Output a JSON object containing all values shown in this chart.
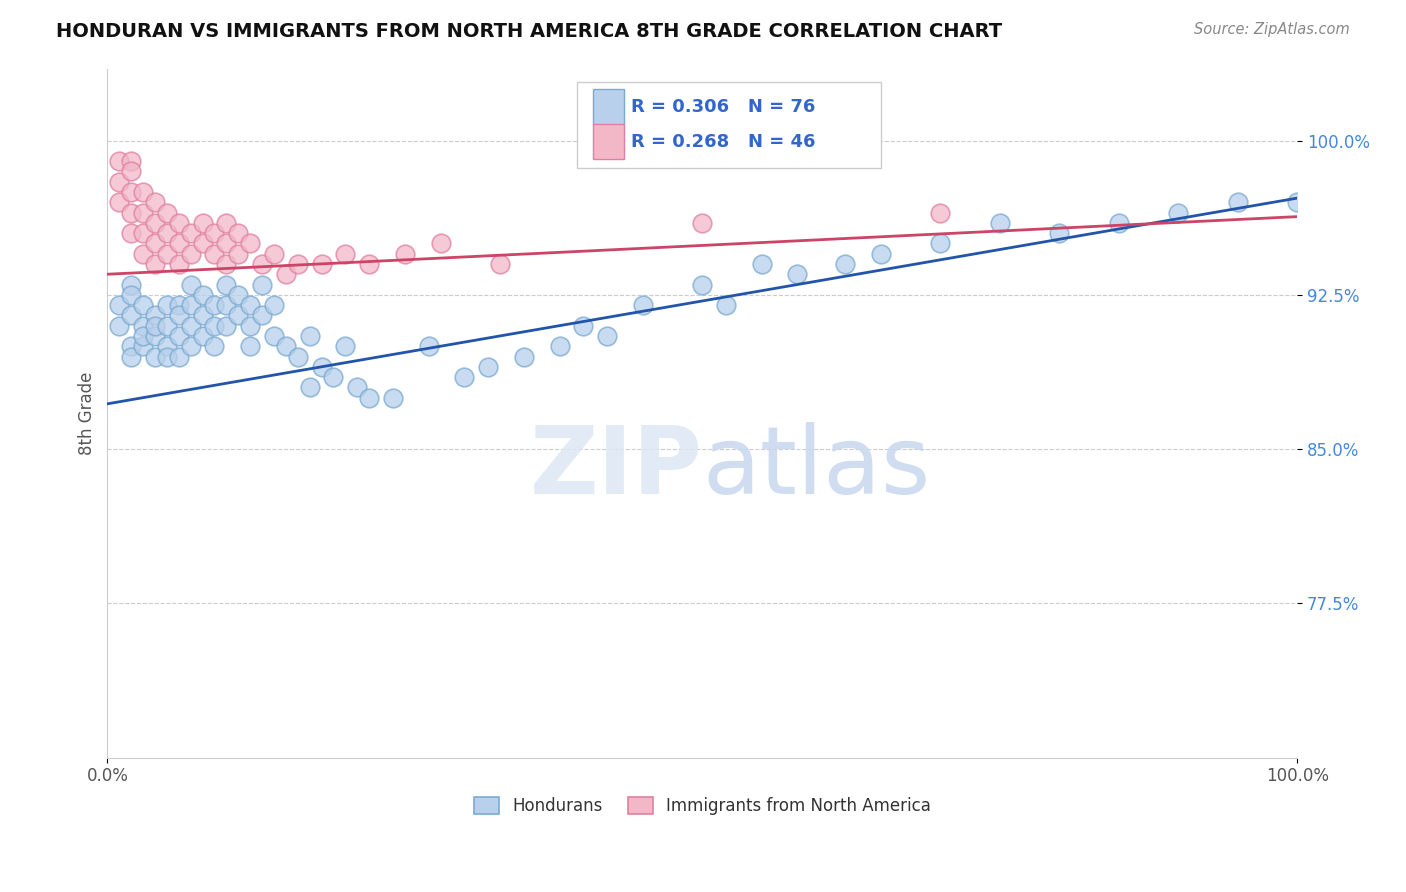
{
  "title": "HONDURAN VS IMMIGRANTS FROM NORTH AMERICA 8TH GRADE CORRELATION CHART",
  "source": "Source: ZipAtlas.com",
  "ylabel": "8th Grade",
  "xlim": [
    0.0,
    1.0
  ],
  "ylim": [
    0.7,
    1.035
  ],
  "ytick_vals": [
    0.775,
    0.85,
    0.925,
    1.0
  ],
  "ytick_labels": [
    "77.5%",
    "85.0%",
    "92.5%",
    "100.0%"
  ],
  "xtick_vals": [
    0.0,
    1.0
  ],
  "xtick_labels": [
    "0.0%",
    "100.0%"
  ],
  "blue_fill": "#b8d0eb",
  "blue_edge": "#7aaad0",
  "pink_fill": "#f2b8c8",
  "pink_edge": "#e080a0",
  "trend_blue": "#2255aa",
  "trend_pink": "#cc4466",
  "R_blue": 0.306,
  "N_blue": 76,
  "R_pink": 0.268,
  "N_pink": 46,
  "legend_labels": [
    "Hondurans",
    "Immigrants from North America"
  ],
  "blue_trend_x0": 0.0,
  "blue_trend_y0": 0.872,
  "blue_trend_x1": 1.0,
  "blue_trend_y1": 0.972,
  "pink_trend_x0": 0.0,
  "pink_trend_y0": 0.935,
  "pink_trend_x1": 1.0,
  "pink_trend_y1": 0.963,
  "blue_x": [
    0.01,
    0.01,
    0.02,
    0.02,
    0.02,
    0.02,
    0.02,
    0.03,
    0.03,
    0.03,
    0.03,
    0.04,
    0.04,
    0.04,
    0.04,
    0.05,
    0.05,
    0.05,
    0.05,
    0.06,
    0.06,
    0.06,
    0.06,
    0.07,
    0.07,
    0.07,
    0.07,
    0.08,
    0.08,
    0.08,
    0.09,
    0.09,
    0.09,
    0.1,
    0.1,
    0.1,
    0.11,
    0.11,
    0.12,
    0.12,
    0.12,
    0.13,
    0.13,
    0.14,
    0.14,
    0.15,
    0.16,
    0.17,
    0.17,
    0.18,
    0.19,
    0.2,
    0.21,
    0.22,
    0.24,
    0.27,
    0.3,
    0.32,
    0.35,
    0.38,
    0.4,
    0.42,
    0.45,
    0.5,
    0.52,
    0.55,
    0.58,
    0.62,
    0.65,
    0.7,
    0.75,
    0.8,
    0.85,
    0.9,
    0.95,
    1.0
  ],
  "blue_y": [
    0.92,
    0.91,
    0.93,
    0.915,
    0.925,
    0.9,
    0.895,
    0.92,
    0.91,
    0.9,
    0.905,
    0.915,
    0.905,
    0.895,
    0.91,
    0.92,
    0.91,
    0.9,
    0.895,
    0.92,
    0.915,
    0.905,
    0.895,
    0.93,
    0.92,
    0.91,
    0.9,
    0.925,
    0.915,
    0.905,
    0.92,
    0.91,
    0.9,
    0.93,
    0.92,
    0.91,
    0.925,
    0.915,
    0.92,
    0.91,
    0.9,
    0.93,
    0.915,
    0.92,
    0.905,
    0.9,
    0.895,
    0.905,
    0.88,
    0.89,
    0.885,
    0.9,
    0.88,
    0.875,
    0.875,
    0.9,
    0.885,
    0.89,
    0.895,
    0.9,
    0.91,
    0.905,
    0.92,
    0.93,
    0.92,
    0.94,
    0.935,
    0.94,
    0.945,
    0.95,
    0.96,
    0.955,
    0.96,
    0.965,
    0.97,
    0.97
  ],
  "pink_x": [
    0.01,
    0.01,
    0.01,
    0.02,
    0.02,
    0.02,
    0.02,
    0.02,
    0.03,
    0.03,
    0.03,
    0.03,
    0.04,
    0.04,
    0.04,
    0.04,
    0.05,
    0.05,
    0.05,
    0.06,
    0.06,
    0.06,
    0.07,
    0.07,
    0.08,
    0.08,
    0.09,
    0.09,
    0.1,
    0.1,
    0.1,
    0.11,
    0.11,
    0.12,
    0.13,
    0.14,
    0.15,
    0.16,
    0.18,
    0.2,
    0.22,
    0.25,
    0.28,
    0.33,
    0.5,
    0.7
  ],
  "pink_y": [
    0.99,
    0.98,
    0.97,
    0.99,
    0.985,
    0.975,
    0.965,
    0.955,
    0.975,
    0.965,
    0.955,
    0.945,
    0.97,
    0.96,
    0.95,
    0.94,
    0.965,
    0.955,
    0.945,
    0.96,
    0.95,
    0.94,
    0.955,
    0.945,
    0.96,
    0.95,
    0.955,
    0.945,
    0.96,
    0.95,
    0.94,
    0.955,
    0.945,
    0.95,
    0.94,
    0.945,
    0.935,
    0.94,
    0.94,
    0.945,
    0.94,
    0.945,
    0.95,
    0.94,
    0.96,
    0.965
  ]
}
